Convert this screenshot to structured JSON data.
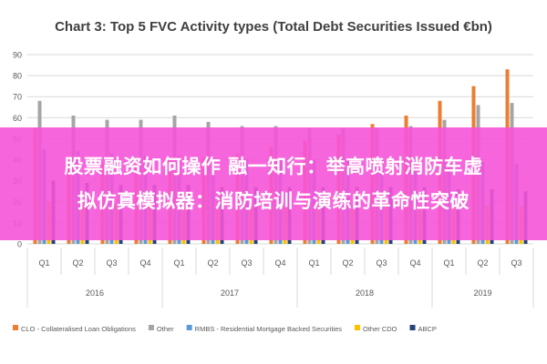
{
  "chart_data": {
    "type": "bar",
    "title": "Chart 3: Top 5 FVC Activity types (Total Debt Securities Issued €bn)",
    "xlabel": "",
    "ylabel": "",
    "ylim": [
      0,
      90
    ],
    "yticks": [
      0,
      10,
      20,
      30,
      40,
      50,
      60,
      70,
      80,
      90
    ],
    "grid": true,
    "legend_position": "bottom",
    "categories": [
      "Q1",
      "Q2",
      "Q3",
      "Q4",
      "Q1",
      "Q2",
      "Q3",
      "Q4",
      "Q1",
      "Q2",
      "Q3",
      "Q4",
      "Q1",
      "Q2",
      "Q3"
    ],
    "years": [
      {
        "label": "2016",
        "quarters": 4
      },
      {
        "label": "2017",
        "quarters": 4
      },
      {
        "label": "2018",
        "quarters": 4
      },
      {
        "label": "2019",
        "quarters": 3
      }
    ],
    "series": [
      {
        "name": "CLO - Collateralised Loan Obligations",
        "color": "#ED7D31",
        "values": [
          55,
          40,
          38,
          38,
          40,
          41,
          43,
          46,
          49,
          52,
          57,
          61,
          68,
          75,
          83
        ]
      },
      {
        "name": "Other",
        "color": "#A5A5A5",
        "values": [
          68,
          61,
          59,
          59,
          61,
          58,
          56,
          56,
          55,
          55,
          55,
          56,
          59,
          66,
          67
        ]
      },
      {
        "name": "RMBS - Residential Mortgage Backed Securities",
        "color": "#5B9BD5",
        "values": [
          45,
          44,
          43,
          42,
          42,
          41,
          40,
          40,
          40,
          40,
          40,
          40,
          39,
          39,
          38
        ]
      },
      {
        "name": "Other CDO",
        "color": "#FFC000",
        "values": [
          20,
          20,
          19,
          19,
          19,
          19,
          18,
          18,
          18,
          18,
          18,
          18,
          18,
          18,
          18
        ]
      },
      {
        "name": "ABCP",
        "color": "#264478",
        "values": [
          30,
          29,
          28,
          28,
          28,
          27,
          27,
          27,
          27,
          27,
          27,
          27,
          26,
          26,
          25
        ]
      }
    ]
  },
  "overlay": {
    "line1": "股票融资如何操作 融一知行：举高喷射消防车虚",
    "line2": "拟仿真模拟器：消防培训与演练的革命性突破"
  }
}
